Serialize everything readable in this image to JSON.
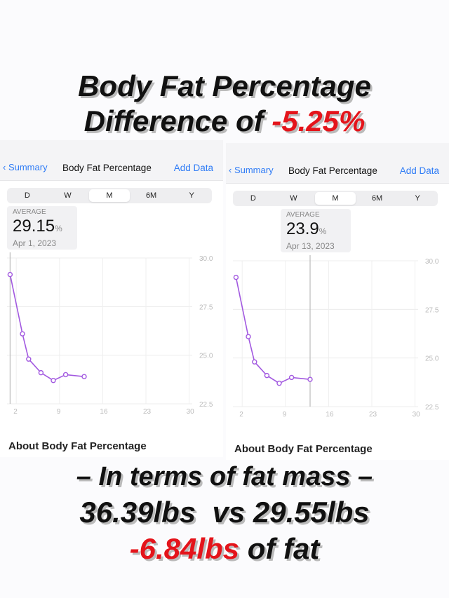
{
  "headline": {
    "line1": "Body Fat Percentage",
    "line2_prefix": "Difference of ",
    "line2_value": "-5.25%"
  },
  "panels": [
    {
      "back": "Summary",
      "title": "Body Fat Percentage",
      "add": "Add Data",
      "tabs": [
        "D",
        "W",
        "M",
        "6M",
        "Y"
      ],
      "selected_tab": "M",
      "avg_label": "AVERAGE",
      "avg_value": "29.15",
      "unit": "%",
      "date": "Apr 1, 2023",
      "about": "About Body Fat Percentage",
      "cursor_day": 1
    },
    {
      "back": "Summary",
      "title": "Body Fat Percentage",
      "add": "Add Data",
      "tabs": [
        "D",
        "W",
        "M",
        "6M",
        "Y"
      ],
      "selected_tab": "M",
      "avg_label": "AVERAGE",
      "avg_value": "23.9",
      "unit": "%",
      "date": "Apr 13, 2023",
      "about": "About Body Fat Percentage",
      "cursor_day": 13
    }
  ],
  "chart_data": {
    "type": "line",
    "x": [
      1,
      3,
      4,
      6,
      8,
      10,
      13
    ],
    "values": [
      29.15,
      26.1,
      24.8,
      24.1,
      23.7,
      24.0,
      23.9
    ],
    "xticks": [
      "2",
      "9",
      "16",
      "23",
      "30"
    ],
    "yticks": [
      "30.0",
      "27.5",
      "25.0",
      "22.5"
    ],
    "ylim": [
      22.5,
      30
    ],
    "xlim": [
      0.5,
      30.5
    ],
    "color": "#a259e0"
  },
  "footer": {
    "line1": "– In terms of fat mass –",
    "line2": "36.39lbs  vs 29.55lbs",
    "line3_value": "-6.84lbs",
    "line3_rest": " of fat"
  }
}
